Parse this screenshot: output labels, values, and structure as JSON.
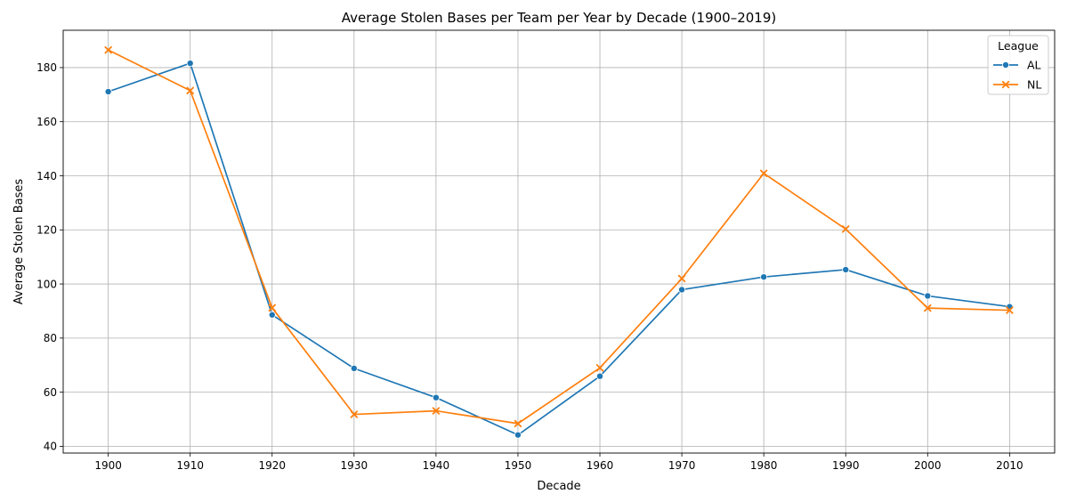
{
  "colors": {
    "AL": "#1f77b4",
    "NL": "#ff7f0e",
    "grid": "#b0b0b0",
    "axis": "#000000"
  },
  "chart_data": {
    "type": "line",
    "title": "Average Stolen Bases per Team per Year by Decade (1900–2019)",
    "xlabel": "Decade",
    "ylabel": "Average Stolen Bases",
    "x": [
      1900,
      1910,
      1920,
      1930,
      1940,
      1950,
      1960,
      1970,
      1980,
      1990,
      2000,
      2010
    ],
    "x_tick_labels": [
      "1900",
      "1910",
      "1920",
      "1930",
      "1940",
      "1950",
      "1960",
      "1970",
      "1980",
      "1990",
      "2000",
      "2010"
    ],
    "y_ticks": [
      40,
      60,
      80,
      100,
      120,
      140,
      160,
      180
    ],
    "y_tick_labels": [
      "40",
      "60",
      "80",
      "100",
      "120",
      "140",
      "160",
      "180"
    ],
    "xlim": [
      1894.5,
      2015.5
    ],
    "ylim": [
      37.5,
      193.8
    ],
    "grid": true,
    "legend": {
      "title": "League",
      "placement": "top-right"
    },
    "series": [
      {
        "name": "AL",
        "marker": "circle",
        "values": [
          171.1,
          181.6,
          88.6,
          68.8,
          58.0,
          44.2,
          65.9,
          97.9,
          102.6,
          105.3,
          95.6,
          91.6
        ]
      },
      {
        "name": "NL",
        "marker": "x",
        "values": [
          186.5,
          171.5,
          91.2,
          51.8,
          53.1,
          48.4,
          69.0,
          102.0,
          140.9,
          120.3,
          91.1,
          90.3
        ]
      }
    ]
  }
}
